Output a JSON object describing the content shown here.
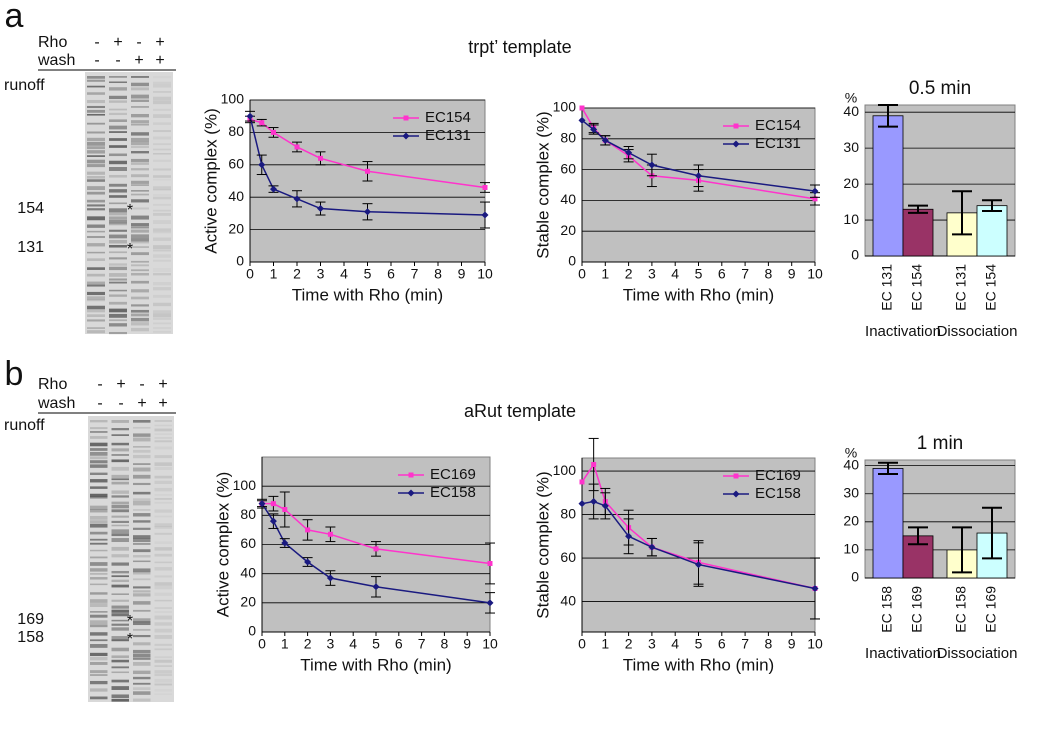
{
  "panels": [
    {
      "label": "a",
      "template": "trpt’ template",
      "gel": {
        "rows": [
          {
            "name": "Rho",
            "signs": [
              "-",
              "+",
              "-",
              "+"
            ]
          },
          {
            "name": "wash",
            "signs": [
              "-",
              "-",
              "+",
              "+"
            ]
          }
        ],
        "runoff": "runoff",
        "markers": [
          {
            "label": "154",
            "star": "*",
            "color": "#ff33cc"
          },
          {
            "label": "131",
            "star": "*",
            "color": "#1a1aa0"
          }
        ]
      }
    },
    {
      "label": "b",
      "template": "aRut template",
      "gel": {
        "rows": [
          {
            "name": "Rho",
            "signs": [
              "-",
              "+",
              "-",
              "+"
            ]
          },
          {
            "name": "wash",
            "signs": [
              "-",
              "-",
              "+",
              "+"
            ]
          }
        ],
        "runoff": "runoff",
        "markers": [
          {
            "label": "169",
            "star": "*",
            "color": "#ff33cc"
          },
          {
            "label": "158",
            "star": "*",
            "color": "#1a1aa0"
          }
        ]
      }
    }
  ],
  "chart_data": [
    {
      "type": "line",
      "xlabel": "Time with Rho (min)",
      "ylabel": "Active complex  (%)",
      "x": [
        0,
        0.5,
        1,
        2,
        3,
        5,
        10
      ],
      "xlim": [
        0,
        10
      ],
      "xticks": [
        0,
        1,
        2,
        3,
        4,
        5,
        6,
        7,
        8,
        9,
        10
      ],
      "ylim": [
        0,
        100
      ],
      "yticks": [
        0,
        20,
        40,
        60,
        80,
        100
      ],
      "grid": true,
      "legend": "upper right",
      "series": [
        {
          "name": "EC154",
          "color": "#ff33cc",
          "marker": "square",
          "values": [
            88,
            86,
            80,
            71,
            64,
            56,
            46
          ],
          "errors": [
            2,
            2,
            3,
            3,
            4,
            6,
            3
          ]
        },
        {
          "name": "EC131",
          "color": "#1a1a80",
          "marker": "diamond",
          "values": [
            90,
            60,
            45,
            39,
            33,
            31,
            29
          ],
          "errors": [
            3,
            6,
            2,
            5,
            4,
            5,
            8
          ]
        }
      ]
    },
    {
      "type": "line",
      "xlabel": "Time with Rho (min)",
      "ylabel": "Stable complex (%)",
      "x": [
        0,
        0.5,
        1,
        2,
        3,
        5,
        10
      ],
      "xlim": [
        0,
        10
      ],
      "xticks": [
        0,
        1,
        2,
        3,
        4,
        5,
        6,
        7,
        8,
        9,
        10
      ],
      "ylim": [
        0,
        100
      ],
      "yticks": [
        0,
        20,
        40,
        60,
        80,
        100
      ],
      "grid": true,
      "legend": "upper right",
      "series": [
        {
          "name": "EC154",
          "color": "#ff33cc",
          "marker": "square",
          "values": [
            100,
            87,
            79,
            69,
            56,
            53,
            41
          ],
          "errors": [
            0,
            3,
            3,
            4,
            7,
            7,
            4
          ]
        },
        {
          "name": "EC131",
          "color": "#1a1a80",
          "marker": "diamond",
          "values": [
            92,
            86,
            79,
            71,
            63,
            56,
            46
          ],
          "errors": [
            0,
            3,
            3,
            4,
            7,
            7,
            4
          ]
        }
      ]
    },
    {
      "type": "bar",
      "title": "0.5 min",
      "ylabel": "%",
      "categories": [
        "EC 131",
        "EC 154",
        "EC 131",
        "EC 154"
      ],
      "groups": [
        "Inactivation",
        "Dissociation"
      ],
      "values": [
        39,
        13,
        12,
        14
      ],
      "errors": [
        3,
        1,
        6,
        1.5
      ],
      "colors": [
        "#9999ff",
        "#993366",
        "#ffffcc",
        "#ccffff"
      ],
      "ylim": [
        0,
        42
      ],
      "yticks": [
        0,
        10,
        20,
        30,
        40
      ],
      "grid": true
    },
    {
      "type": "line",
      "xlabel": "Time with Rho (min)",
      "ylabel": "Active complex (%)",
      "x": [
        0,
        0.5,
        1,
        2,
        3,
        5,
        10
      ],
      "xlim": [
        0,
        10
      ],
      "xticks": [
        0,
        1,
        2,
        3,
        4,
        5,
        6,
        7,
        8,
        9,
        10
      ],
      "ylim": [
        0,
        120
      ],
      "yticks": [
        0,
        20,
        40,
        60,
        80,
        100
      ],
      "grid": true,
      "legend": "upper right",
      "series": [
        {
          "name": "EC169",
          "color": "#ff33cc",
          "marker": "square",
          "values": [
            88,
            88,
            84,
            70,
            67,
            57,
            47
          ],
          "errors": [
            3,
            5,
            12,
            7,
            5,
            5,
            14
          ]
        },
        {
          "name": "EC158",
          "color": "#1a1a80",
          "marker": "diamond",
          "values": [
            88,
            76,
            61,
            48,
            37,
            31,
            20
          ],
          "errors": [
            2,
            5,
            3,
            3,
            5,
            7,
            7
          ]
        }
      ]
    },
    {
      "type": "line",
      "xlabel": "Time with Rho (min)",
      "ylabel": "Stable complex (%)",
      "x": [
        0,
        0.5,
        1,
        2,
        3,
        5,
        10
      ],
      "xlim": [
        0,
        10
      ],
      "xticks": [
        0,
        1,
        2,
        3,
        4,
        5,
        6,
        7,
        8,
        9,
        10
      ],
      "ylim": [
        26,
        106
      ],
      "yticks": [
        40,
        60,
        80,
        100
      ],
      "grid": true,
      "legend": "upper right",
      "series": [
        {
          "name": "EC169",
          "color": "#ff33cc",
          "marker": "square",
          "values": [
            95,
            103,
            86,
            74,
            65,
            58,
            46
          ],
          "errors": [
            0,
            12,
            6,
            8,
            4,
            10,
            14
          ]
        },
        {
          "name": "EC158",
          "color": "#1a1a80",
          "marker": "diamond",
          "values": [
            85,
            86,
            84,
            70,
            65,
            57,
            46
          ],
          "errors": [
            0,
            8,
            6,
            8,
            4,
            10,
            14
          ]
        }
      ]
    },
    {
      "type": "bar",
      "title": "1 min",
      "ylabel": "%",
      "categories": [
        "EC 158",
        "EC 169",
        "EC 158",
        "EC 169"
      ],
      "groups": [
        "Inactivation",
        "Dissociation"
      ],
      "values": [
        39,
        15,
        10,
        16
      ],
      "errors": [
        2,
        3,
        8,
        9
      ],
      "colors": [
        "#9999ff",
        "#993366",
        "#ffffcc",
        "#ccffff"
      ],
      "ylim": [
        0,
        42
      ],
      "yticks": [
        0,
        10,
        20,
        30,
        40
      ],
      "grid": true
    }
  ]
}
